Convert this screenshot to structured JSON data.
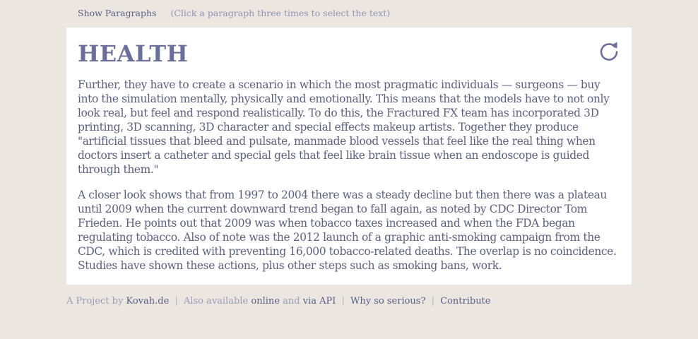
{
  "header": {
    "show_paragraphs_label": "Show Paragraphs",
    "hint_text": "(Click a paragraph three times to select the text)"
  },
  "card": {
    "title": "HEALTH",
    "reload_icon": "reload-icon",
    "paragraphs": [
      "Further, they have to create a scenario in which the most pragmatic individuals — surgeons — buy into the simulation mentally, physically and emotionally. This means that the models have to not only look real, but feel and respond realistically. To do this, the Fractured FX team has incorporated 3D printing, 3D scanning, 3D character and special effects makeup artists. Together they produce \"artificial tissues that bleed and pulsate, manmade blood vessels that feel like the real thing when doctors insert a catheter and special gels that feel like brain tissue when an endoscope is guided through them.\"",
      "A closer look shows that from 1997 to 2004 there was a steady decline but then there was a plateau until 2009 when the current downward trend began to fall again, as noted by CDC Director Tom Frieden. He points out that 2009 was when tobacco taxes increased and when the FDA began regulating tobacco. Also of note was the 2012 launch of a graphic anti-smoking campaign from the CDC, which is credited with preventing 16,000 tobacco-related deaths. The overlap is no coincidence. Studies have shown these actions, plus other steps such as smoking bans, work."
    ]
  },
  "footer": {
    "project_by": "A Project by",
    "author_link": "Kovah.de",
    "separator": "|",
    "also_available": "Also available",
    "online_link": "online",
    "and_text": "and",
    "api_link": "via API",
    "why_link": "Why so serious?",
    "contribute_link": "Contribute"
  },
  "colors": {
    "background": "#ebe6e0",
    "card": "#ffffff",
    "title": "#6b6f9a",
    "text": "#5c607e",
    "link": "#5a5f86",
    "muted": "#9a9db8"
  }
}
